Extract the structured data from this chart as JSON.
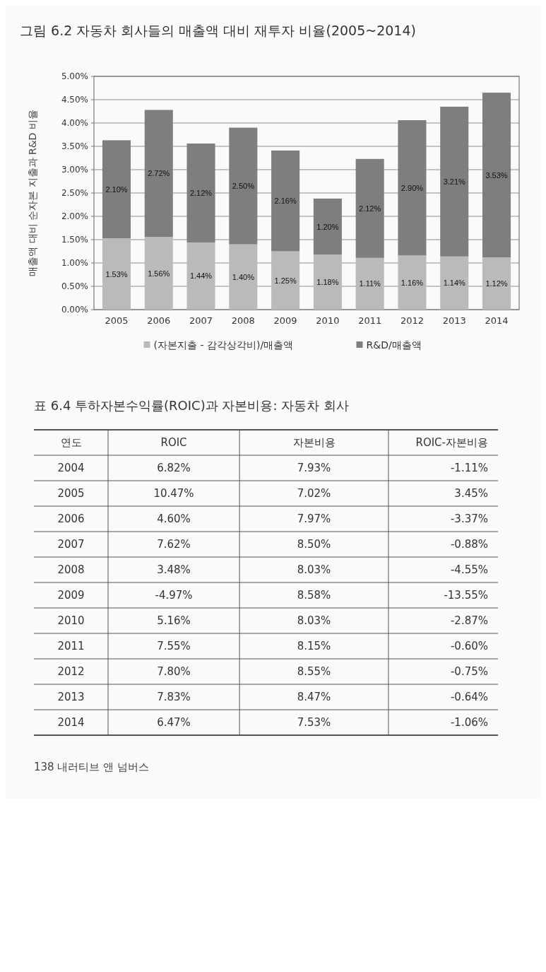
{
  "chart_data": [
    {
      "type": "bar",
      "title": "그림 6.2 자동차 회사들의 매출액 대비 재투자 비율(2005~2014)",
      "ylabel": "매출액 대비 순자본 지출과 R&D 비율",
      "categories": [
        "2005",
        "2006",
        "2007",
        "2008",
        "2009",
        "2010",
        "2011",
        "2012",
        "2013",
        "2014"
      ],
      "stacked": true,
      "series": [
        {
          "name": "(자본지출 - 감각상각비)/매출액",
          "color": "#bababa",
          "values": [
            1.53,
            1.56,
            1.44,
            1.4,
            1.25,
            1.18,
            1.11,
            1.16,
            1.14,
            1.12
          ],
          "value_labels": [
            "1.53%",
            "1.56%",
            "1.44%",
            "1.40%",
            "1.25%",
            "1.18%",
            "1.11%",
            "1.16%",
            "1.14%",
            "1.12%"
          ]
        },
        {
          "name": "R&D/매출액",
          "color": "#7e7e7e",
          "values": [
            2.1,
            2.72,
            2.12,
            2.5,
            2.16,
            1.2,
            2.12,
            2.9,
            3.21,
            3.53
          ],
          "value_labels": [
            "2.10%",
            "2.72%",
            "2.12%",
            "2.50%",
            "2.16%",
            "1.20%",
            "2.12%",
            "2.90%",
            "3.21%",
            "3.53%"
          ]
        }
      ],
      "ylim": [
        0,
        5
      ],
      "yticks": [
        {
          "value": 0,
          "label": "0.00%"
        },
        {
          "value": 0.5,
          "label": "0.50%"
        },
        {
          "value": 1,
          "label": "1.00%"
        },
        {
          "value": 1.5,
          "label": "1.50%"
        },
        {
          "value": 2,
          "label": "2.00%"
        },
        {
          "value": 2.5,
          "label": "2.50%"
        },
        {
          "value": 3,
          "label": "3.00%"
        },
        {
          "value": 3.5,
          "label": "3.50%"
        },
        {
          "value": 4,
          "label": "4.00%"
        },
        {
          "value": 4.5,
          "label": "4.50%"
        },
        {
          "value": 5,
          "label": "5.00%"
        }
      ],
      "grid": true,
      "legend": "bottom"
    },
    {
      "type": "heatmap",
      "title": "표 6.4 투하자본수익률(ROIC)과 자본비용: 자동차 회사",
      "ylabel": "연도",
      "categories": [
        "ROIC",
        "자본비용",
        "ROIC-자본비용"
      ],
      "y_categories": [
        "2004",
        "2005",
        "2006",
        "2007",
        "2008",
        "2009",
        "2010",
        "2011",
        "2012",
        "2013",
        "2014"
      ],
      "cells": [
        [
          6.82,
          7.93,
          -1.11
        ],
        [
          10.47,
          7.02,
          3.45
        ],
        [
          4.6,
          7.97,
          -3.37
        ],
        [
          7.62,
          8.5,
          -0.88
        ],
        [
          3.48,
          8.03,
          -4.55
        ],
        [
          -4.97,
          8.58,
          -13.55
        ],
        [
          5.16,
          8.03,
          -2.87
        ],
        [
          7.55,
          8.15,
          -0.6
        ],
        [
          7.8,
          8.55,
          -0.75
        ],
        [
          7.83,
          8.47,
          -0.64
        ],
        [
          6.47,
          7.53,
          -1.06
        ]
      ],
      "cell_labels": [
        [
          "6.82%",
          "7.93%",
          "-1.11%"
        ],
        [
          "10.47%",
          "7.02%",
          "3.45%"
        ],
        [
          "4.60%",
          "7.97%",
          "-3.37%"
        ],
        [
          "7.62%",
          "8.50%",
          "-0.88%"
        ],
        [
          "3.48%",
          "8.03%",
          "-4.55%"
        ],
        [
          "-4.97%",
          "8.58%",
          "-13.55%"
        ],
        [
          "5.16%",
          "8.03%",
          "-2.87%"
        ],
        [
          "7.55%",
          "8.15%",
          "-0.60%"
        ],
        [
          "7.80%",
          "8.55%",
          "-0.75%"
        ],
        [
          "7.83%",
          "8.47%",
          "-0.64%"
        ],
        [
          "6.47%",
          "7.53%",
          "-1.06%"
        ]
      ],
      "grid": true,
      "annotations": [
        "138 내러티브 앤 넘버스"
      ]
    }
  ]
}
